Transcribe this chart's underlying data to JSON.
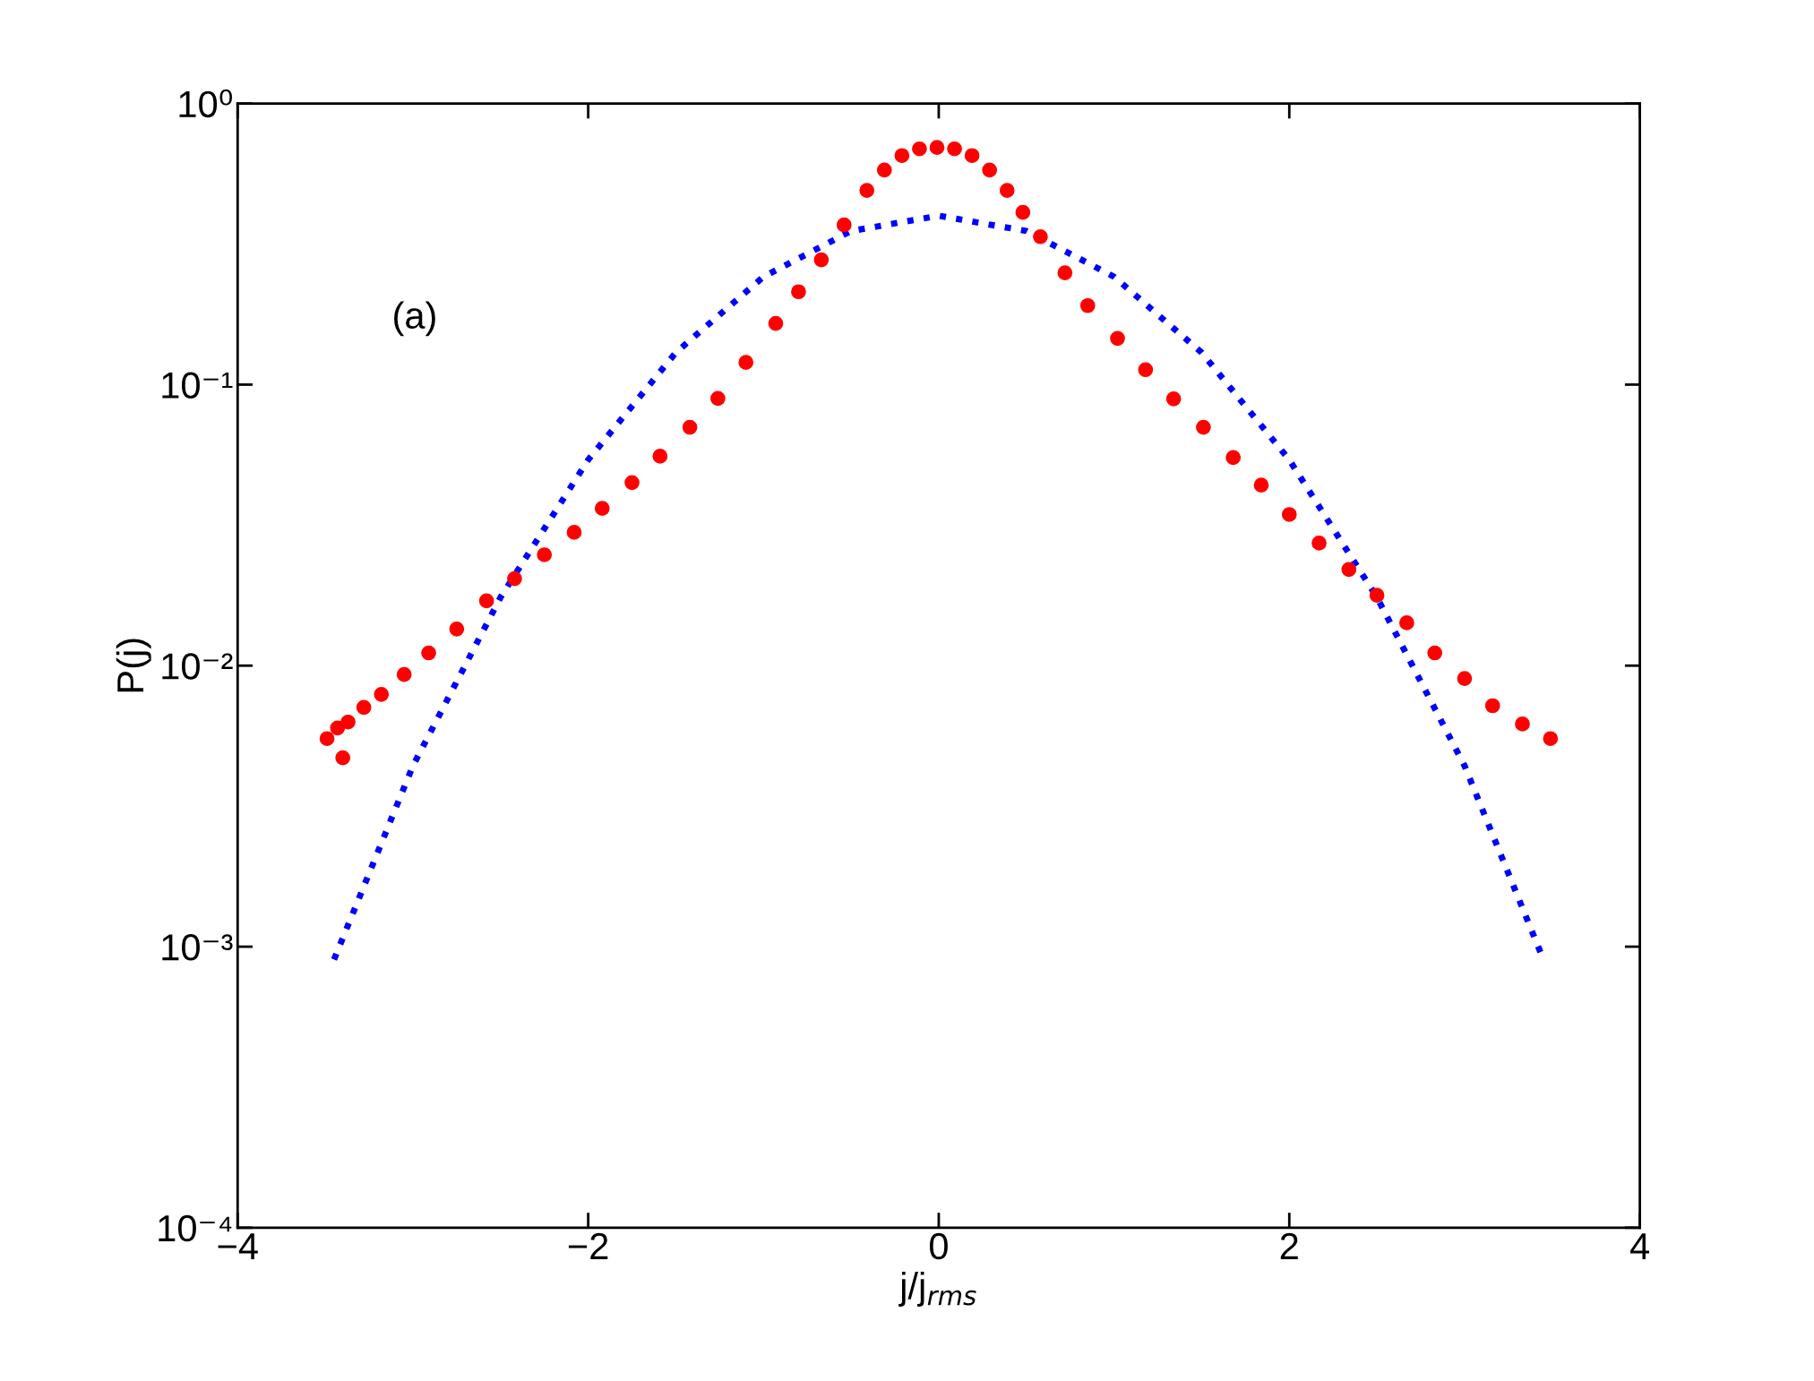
{
  "chart_data": {
    "type": "line",
    "xlabel": "j/j$_{rms}$",
    "ylabel": "P(j)",
    "log": "y",
    "xlim": [
      -4,
      4
    ],
    "xticks": [
      {
        "value": -4,
        "label": "−4"
      },
      {
        "value": -2,
        "label": "−2"
      },
      0,
      2,
      4
    ],
    "ylim": [
      0.0001,
      1
    ],
    "yticks": [
      {
        "value": 0.0001,
        "label": "10⁻⁴"
      },
      {
        "value": 0.001,
        "label": "10⁻³"
      },
      {
        "value": 0.01,
        "label": "10⁻²"
      },
      {
        "value": 0.1,
        "label": "10⁻¹"
      },
      {
        "value": 1,
        "label": "10⁰"
      }
    ],
    "grid": false,
    "legend": false,
    "annotations": [
      "(a)"
    ],
    "series": [
      {
        "type": "scatter",
        "color": "#ff0000",
        "marker": "circle",
        "x": [
          -3.49,
          -3.43,
          -3.4,
          -3.37,
          -3.28,
          -3.18,
          -3.05,
          -2.91,
          -2.75,
          -2.58,
          -2.42,
          -2.25,
          -2.08,
          -1.92,
          -1.75,
          -1.59,
          -1.42,
          -1.26,
          -1.1,
          -0.93,
          -0.8,
          -0.67,
          -0.54,
          -0.41,
          -0.31,
          -0.21,
          -0.11,
          -0.01,
          0.09,
          0.19,
          0.29,
          0.39,
          0.48,
          0.58,
          0.72,
          0.85,
          1.02,
          1.18,
          1.34,
          1.51,
          1.68,
          1.84,
          2.0,
          2.17,
          2.34,
          2.5,
          2.67,
          2.83,
          3.0,
          3.16,
          3.33,
          3.49
        ],
        "values": [
          0.0055,
          0.006,
          0.0047,
          0.0063,
          0.0071,
          0.0079,
          0.0093,
          0.0111,
          0.0135,
          0.017,
          0.0204,
          0.0248,
          0.0298,
          0.0363,
          0.0448,
          0.0556,
          0.0705,
          0.0893,
          0.12,
          0.165,
          0.214,
          0.278,
          0.37,
          0.491,
          0.58,
          0.653,
          0.69,
          0.698,
          0.69,
          0.653,
          0.58,
          0.491,
          0.41,
          0.336,
          0.25,
          0.191,
          0.146,
          0.113,
          0.089,
          0.0705,
          0.055,
          0.0439,
          0.0345,
          0.0273,
          0.022,
          0.0178,
          0.0142,
          0.0111,
          0.009,
          0.0072,
          0.0062,
          0.0055
        ]
      },
      {
        "color": "#0000ff",
        "marker": "none",
        "line_style": "dotted",
        "x": [
          -3.45,
          -3,
          -2.5,
          -2,
          -1.5,
          -1,
          -0.5,
          0,
          0.5,
          1,
          1.5,
          2,
          2.5,
          3,
          3.45
        ],
        "values": [
          0.0009,
          0.0044,
          0.0175,
          0.054,
          0.13,
          0.242,
          0.352,
          0.399,
          0.352,
          0.242,
          0.13,
          0.054,
          0.0175,
          0.0044,
          0.0009
        ]
      }
    ]
  }
}
